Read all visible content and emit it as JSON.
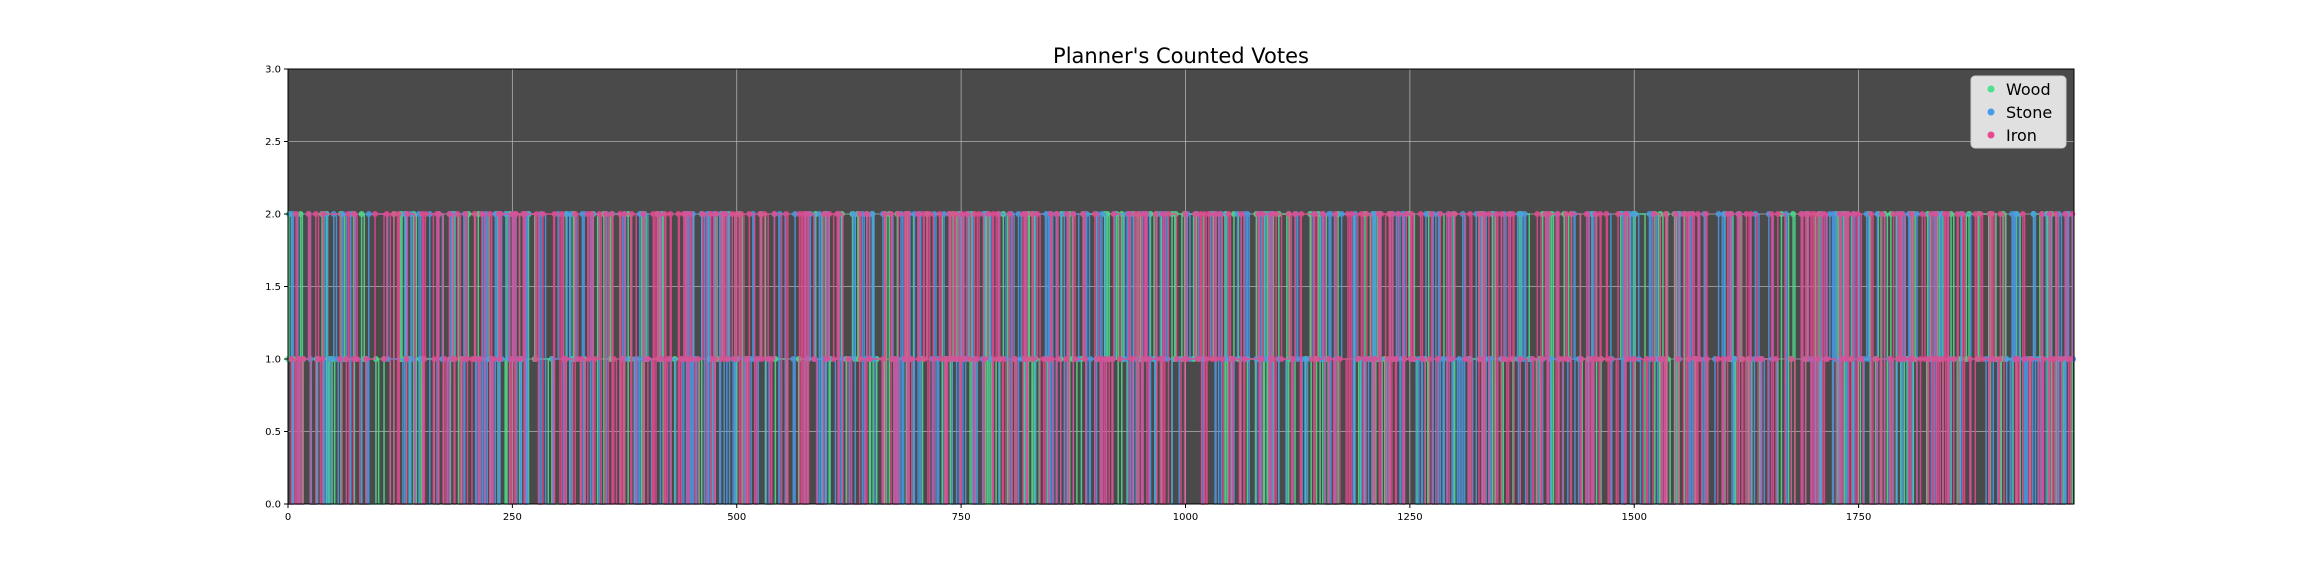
{
  "chart_data": {
    "type": "line",
    "title": "Planner's Counted Votes",
    "xlabel": "",
    "ylabel": "",
    "xlim": [
      0,
      1990
    ],
    "ylim": [
      0,
      3
    ],
    "x_ticks": [
      0,
      250,
      500,
      750,
      1000,
      1250,
      1500,
      1750
    ],
    "y_ticks": [
      "0.0",
      "0.5",
      "1.0",
      "1.5",
      "2.0",
      "2.5",
      "3.0"
    ],
    "grid": true,
    "legend_position": "upper right",
    "background": "#4a4a4a",
    "series": [
      {
        "name": "Wood",
        "color": "#4ee08f",
        "seed": 11,
        "switch_rate": 0.33
      },
      {
        "name": "Stone",
        "color": "#4a9ae8",
        "seed": 29,
        "switch_rate": 0.42
      },
      {
        "name": "Iron",
        "color": "#e8488f",
        "seed": 53,
        "switch_rate": 0.48
      }
    ]
  }
}
